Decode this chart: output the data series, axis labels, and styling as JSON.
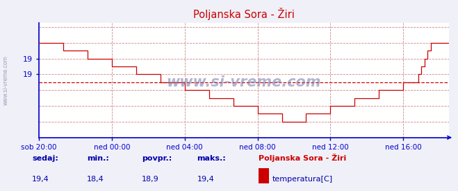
{
  "title": "Poljanska Sora - Žiri",
  "line_color": "#cc0000",
  "bg_color": "#f0f0f8",
  "plot_bg_color": "#ffffff",
  "grid_color_v": "#ddaaaa",
  "grid_color_h": "#ddaaaa",
  "axis_color": "#0000cc",
  "text_color": "#0000aa",
  "dashed_line_value": 18.9,
  "ymin": 18.2,
  "ymax": 19.65,
  "ytick_values": [
    19.0,
    19.2
  ],
  "ytick_labels": [
    "19",
    "19"
  ],
  "xtick_positions": [
    0,
    24,
    48,
    72,
    96,
    120
  ],
  "xtick_labels": [
    "sob 20:00",
    "ned 00:00",
    "ned 04:00",
    "ned 08:00",
    "ned 12:00",
    "ned 16:00"
  ],
  "footer_labels": [
    "sedaj:",
    "min.:",
    "povpr.:",
    "maks.:"
  ],
  "footer_values": [
    "19,4",
    "18,4",
    "18,9",
    "19,4"
  ],
  "legend_title": "Poljanska Sora - Žiri",
  "legend_series": "temperatura[C]",
  "watermark": "www.si-vreme.com",
  "temp_values": [
    19.4,
    19.4,
    19.4,
    19.4,
    19.4,
    19.4,
    19.4,
    19.4,
    19.3,
    19.3,
    19.3,
    19.3,
    19.3,
    19.3,
    19.3,
    19.3,
    19.2,
    19.2,
    19.2,
    19.2,
    19.2,
    19.2,
    19.2,
    19.2,
    19.1,
    19.1,
    19.1,
    19.1,
    19.1,
    19.1,
    19.1,
    19.1,
    19.0,
    19.0,
    19.0,
    19.0,
    19.0,
    19.0,
    19.0,
    19.0,
    18.9,
    18.9,
    18.9,
    18.9,
    18.9,
    18.9,
    18.9,
    18.9,
    18.8,
    18.8,
    18.8,
    18.8,
    18.8,
    18.8,
    18.8,
    18.8,
    18.7,
    18.7,
    18.7,
    18.7,
    18.7,
    18.7,
    18.7,
    18.7,
    18.6,
    18.6,
    18.6,
    18.6,
    18.6,
    18.6,
    18.6,
    18.6,
    18.5,
    18.5,
    18.5,
    18.5,
    18.5,
    18.5,
    18.5,
    18.5,
    18.4,
    18.4,
    18.4,
    18.4,
    18.4,
    18.4,
    18.4,
    18.4,
    18.5,
    18.5,
    18.5,
    18.5,
    18.5,
    18.5,
    18.5,
    18.5,
    18.6,
    18.6,
    18.6,
    18.6,
    18.6,
    18.6,
    18.6,
    18.6,
    18.7,
    18.7,
    18.7,
    18.7,
    18.7,
    18.7,
    18.7,
    18.7,
    18.8,
    18.8,
    18.8,
    18.8,
    18.8,
    18.8,
    18.8,
    18.8,
    18.9,
    18.9,
    18.9,
    18.9,
    18.9,
    19.0,
    19.1,
    19.2,
    19.3,
    19.4,
    19.4,
    19.4,
    19.4,
    19.4,
    19.4,
    19.4
  ],
  "n_points": 136
}
